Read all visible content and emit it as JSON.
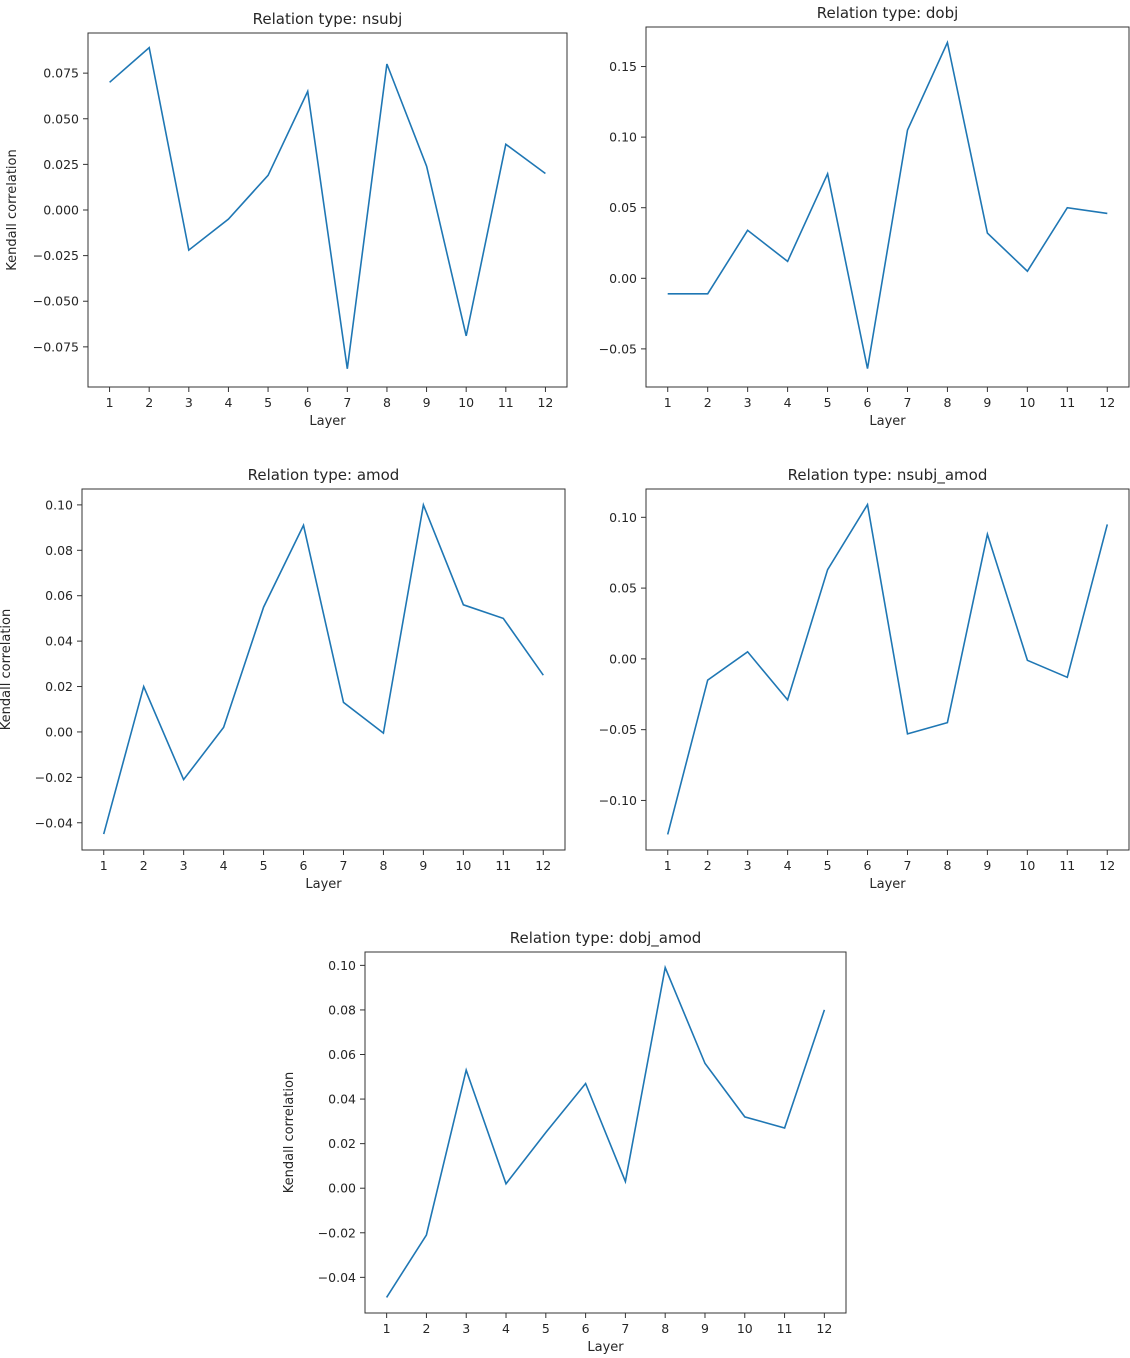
{
  "figure": {
    "line_color": "#1f77b4"
  },
  "chart_data": [
    {
      "type": "line",
      "title": "Relation type: nsubj",
      "xlabel": "Layer",
      "ylabel": "Kendall correlation",
      "x": [
        1,
        2,
        3,
        4,
        5,
        6,
        7,
        8,
        9,
        10,
        11,
        12
      ],
      "values": [
        0.07,
        0.089,
        -0.022,
        -0.005,
        0.019,
        0.065,
        -0.087,
        0.08,
        0.024,
        -0.069,
        0.036,
        0.02
      ],
      "ylim": [
        -0.097,
        0.097
      ],
      "yticks": [
        -0.075,
        -0.05,
        -0.025,
        0.0,
        0.025,
        0.05,
        0.075
      ],
      "ytick_labels": [
        "−0.075",
        "−0.050",
        "−0.025",
        "0.000",
        "0.025",
        "0.050",
        "0.075"
      ],
      "xticks": [
        1,
        2,
        3,
        4,
        5,
        6,
        7,
        8,
        9,
        10,
        11,
        12
      ],
      "xtick_labels": [
        "1",
        "2",
        "3",
        "4",
        "5",
        "6",
        "7",
        "8",
        "9",
        "10",
        "11",
        "12"
      ],
      "grid": false,
      "legend": false
    },
    {
      "type": "line",
      "title": "Relation type: dobj",
      "xlabel": "Layer",
      "ylabel": "",
      "x": [
        1,
        2,
        3,
        4,
        5,
        6,
        7,
        8,
        9,
        10,
        11,
        12
      ],
      "values": [
        -0.011,
        -0.011,
        0.034,
        0.012,
        0.074,
        -0.064,
        0.105,
        0.167,
        0.032,
        0.005,
        0.05,
        0.046
      ],
      "ylim": [
        -0.077,
        0.178
      ],
      "yticks": [
        -0.05,
        0.0,
        0.05,
        0.1,
        0.15
      ],
      "ytick_labels": [
        "−0.05",
        "0.00",
        "0.05",
        "0.10",
        "0.15"
      ],
      "xticks": [
        1,
        2,
        3,
        4,
        5,
        6,
        7,
        8,
        9,
        10,
        11,
        12
      ],
      "xtick_labels": [
        "1",
        "2",
        "3",
        "4",
        "5",
        "6",
        "7",
        "8",
        "9",
        "10",
        "11",
        "12"
      ],
      "grid": false,
      "legend": false
    },
    {
      "type": "line",
      "title": "Relation type: amod",
      "xlabel": "Layer",
      "ylabel": "Kendall correlation",
      "x": [
        1,
        2,
        3,
        4,
        5,
        6,
        7,
        8,
        9,
        10,
        11,
        12
      ],
      "values": [
        -0.045,
        0.02,
        -0.021,
        0.002,
        0.055,
        0.091,
        0.013,
        -0.0005,
        0.1,
        0.056,
        0.05,
        0.025
      ],
      "ylim": [
        -0.052,
        0.107
      ],
      "yticks": [
        -0.04,
        -0.02,
        0.0,
        0.02,
        0.04,
        0.06,
        0.08,
        0.1
      ],
      "ytick_labels": [
        "−0.04",
        "−0.02",
        "0.00",
        "0.02",
        "0.04",
        "0.06",
        "0.08",
        "0.10"
      ],
      "xticks": [
        1,
        2,
        3,
        4,
        5,
        6,
        7,
        8,
        9,
        10,
        11,
        12
      ],
      "xtick_labels": [
        "1",
        "2",
        "3",
        "4",
        "5",
        "6",
        "7",
        "8",
        "9",
        "10",
        "11",
        "12"
      ],
      "grid": false,
      "legend": false
    },
    {
      "type": "line",
      "title": "Relation type: nsubj_amod",
      "xlabel": "Layer",
      "ylabel": "",
      "x": [
        1,
        2,
        3,
        4,
        5,
        6,
        7,
        8,
        9,
        10,
        11,
        12
      ],
      "values": [
        -0.124,
        -0.015,
        0.005,
        -0.029,
        0.063,
        0.109,
        -0.053,
        -0.045,
        0.088,
        -0.001,
        -0.013,
        0.095
      ],
      "ylim": [
        -0.135,
        0.12
      ],
      "yticks": [
        -0.1,
        -0.05,
        0.0,
        0.05,
        0.1
      ],
      "ytick_labels": [
        "−0.10",
        "−0.05",
        "0.00",
        "0.05",
        "0.10"
      ],
      "xticks": [
        1,
        2,
        3,
        4,
        5,
        6,
        7,
        8,
        9,
        10,
        11,
        12
      ],
      "xtick_labels": [
        "1",
        "2",
        "3",
        "4",
        "5",
        "6",
        "7",
        "8",
        "9",
        "10",
        "11",
        "12"
      ],
      "grid": false,
      "legend": false
    },
    {
      "type": "line",
      "title": "Relation type: dobj_amod",
      "xlabel": "Layer",
      "ylabel": "Kendall correlation",
      "x": [
        1,
        2,
        3,
        4,
        5,
        6,
        7,
        8,
        9,
        10,
        11,
        12
      ],
      "values": [
        -0.049,
        -0.021,
        0.053,
        0.002,
        0.025,
        0.047,
        0.003,
        0.099,
        0.056,
        0.032,
        0.027,
        0.08
      ],
      "ylim": [
        -0.056,
        0.106
      ],
      "yticks": [
        -0.04,
        -0.02,
        0.0,
        0.02,
        0.04,
        0.06,
        0.08,
        0.1
      ],
      "ytick_labels": [
        "−0.04",
        "−0.02",
        "0.00",
        "0.02",
        "0.04",
        "0.06",
        "0.08",
        "0.10"
      ],
      "xticks": [
        1,
        2,
        3,
        4,
        5,
        6,
        7,
        8,
        9,
        10,
        11,
        12
      ],
      "xtick_labels": [
        "1",
        "2",
        "3",
        "4",
        "5",
        "6",
        "7",
        "8",
        "9",
        "10",
        "11",
        "12"
      ],
      "grid": false,
      "legend": false
    }
  ]
}
